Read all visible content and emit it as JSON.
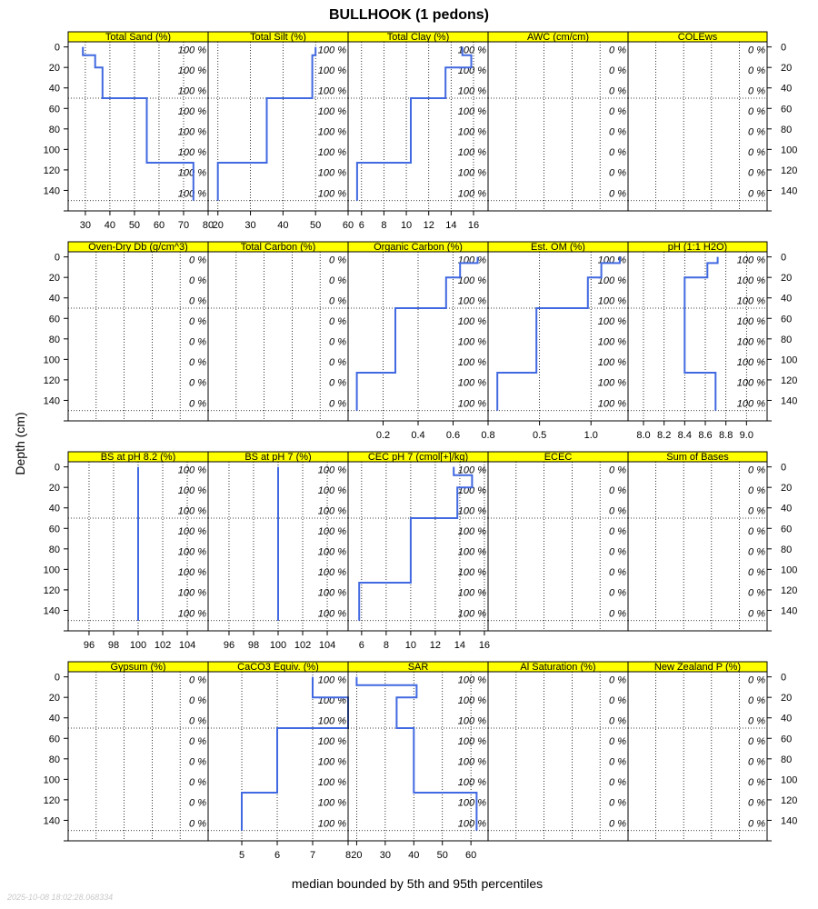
{
  "title": "BULLHOOK (1 pedons)",
  "ylabel": "Depth (cm)",
  "xlabel": "median bounded by 5th and 95th percentiles",
  "timestamp": "2025-10-08 18:02:28.068334",
  "colors": {
    "strip": "#ffff00",
    "line": "#4169e1",
    "grid": "#000000"
  },
  "chart_data": {
    "type": "line",
    "y_axis": {
      "label": "Depth (cm)",
      "ylim": [
        -5,
        160
      ],
      "ticks": [
        0,
        20,
        40,
        60,
        80,
        100,
        120,
        140
      ],
      "reversed": true
    },
    "percent_labels_at_depth": [
      2.5,
      22.5,
      42.5,
      62.5,
      82.5,
      102.5,
      122.5,
      142.5
    ],
    "reference_depths": [
      50,
      150
    ],
    "panels": [
      {
        "name": "Total Sand (%)",
        "xlim": [
          23,
          80
        ],
        "xticks": [
          30,
          40,
          50,
          60,
          70,
          80
        ],
        "pct": "100 %",
        "profile": [
          [
            29,
            0
          ],
          [
            29,
            8
          ],
          [
            34,
            8
          ],
          [
            34,
            20
          ],
          [
            37,
            20
          ],
          [
            37,
            50
          ],
          [
            55,
            50
          ],
          [
            55,
            113
          ],
          [
            74,
            113
          ],
          [
            74,
            150
          ]
        ]
      },
      {
        "name": "Total Silt (%)",
        "xlim": [
          17,
          60
        ],
        "xticks": [
          20,
          30,
          40,
          50,
          60
        ],
        "pct": "100 %",
        "profile": [
          [
            50,
            0
          ],
          [
            50,
            8
          ],
          [
            49,
            8
          ],
          [
            49,
            20
          ],
          [
            49,
            50
          ],
          [
            35,
            50
          ],
          [
            35,
            113
          ],
          [
            20,
            113
          ],
          [
            20,
            150
          ]
        ]
      },
      {
        "name": "Total Clay (%)",
        "xlim": [
          4.8,
          17.3
        ],
        "xticks": [
          6,
          8,
          10,
          12,
          14,
          16
        ],
        "pct": "100 %",
        "profile": [
          [
            15,
            0
          ],
          [
            15,
            8
          ],
          [
            15.8,
            8
          ],
          [
            15.8,
            20
          ],
          [
            13.5,
            20
          ],
          [
            13.5,
            50
          ],
          [
            10.4,
            50
          ],
          [
            10.4,
            113
          ],
          [
            5.6,
            113
          ],
          [
            5.6,
            150
          ]
        ]
      },
      {
        "name": "AWC (cm/cm)",
        "xlim": [
          0,
          1
        ],
        "xticks": [],
        "pct": "0 %",
        "profile": []
      },
      {
        "name": "COLEws",
        "xlim": [
          0,
          1
        ],
        "xticks": [],
        "pct": "0 %",
        "profile": []
      },
      {
        "name": "Oven-Dry Db (g/cm^3)",
        "xlim": [
          0,
          1
        ],
        "xticks": [],
        "pct": "0 %",
        "profile": []
      },
      {
        "name": "Total Carbon (%)",
        "xlim": [
          0,
          1
        ],
        "xticks": [],
        "pct": "0 %",
        "profile": []
      },
      {
        "name": "Organic Carbon (%)",
        "xlim": [
          0,
          0.8
        ],
        "xticks": [
          0.2,
          0.4,
          0.6,
          0.8
        ],
        "xticklabels": [
          "0.2",
          "0.4",
          "0.6",
          "0.8"
        ],
        "pct": "100 %",
        "profile": [
          [
            0.74,
            0
          ],
          [
            0.74,
            6
          ],
          [
            0.64,
            6
          ],
          [
            0.64,
            20
          ],
          [
            0.56,
            20
          ],
          [
            0.56,
            50
          ],
          [
            0.27,
            50
          ],
          [
            0.27,
            113
          ],
          [
            0.05,
            113
          ],
          [
            0.05,
            150
          ]
        ]
      },
      {
        "name": "Est. OM (%)",
        "xlim": [
          0,
          1.36
        ],
        "xticks": [
          0.5,
          1.0
        ],
        "xticklabels": [
          "0.5",
          "1.0"
        ],
        "pct": "100 %",
        "profile": [
          [
            1.28,
            0
          ],
          [
            1.28,
            6
          ],
          [
            1.1,
            6
          ],
          [
            1.1,
            20
          ],
          [
            0.97,
            20
          ],
          [
            0.97,
            50
          ],
          [
            0.47,
            50
          ],
          [
            0.47,
            113
          ],
          [
            0.09,
            113
          ],
          [
            0.09,
            150
          ]
        ]
      },
      {
        "name": "pH (1:1 H2O)",
        "xlim": [
          7.85,
          9.2
        ],
        "xticks": [
          8.0,
          8.2,
          8.4,
          8.6,
          8.8,
          9.0
        ],
        "xticklabels": [
          "8.0",
          "8.2",
          "8.4",
          "8.6",
          "8.8",
          "9.0"
        ],
        "pct": "100 %",
        "profile": [
          [
            8.72,
            0
          ],
          [
            8.72,
            6
          ],
          [
            8.62,
            6
          ],
          [
            8.62,
            20
          ],
          [
            8.4,
            20
          ],
          [
            8.4,
            113
          ],
          [
            8.7,
            113
          ],
          [
            8.7,
            150
          ]
        ]
      },
      {
        "name": "BS at pH 8.2 (%)",
        "xlim": [
          94.3,
          105.7
        ],
        "xticks": [
          96,
          98,
          100,
          102,
          104
        ],
        "pct": "100 %",
        "profile": [
          [
            100,
            0
          ],
          [
            100,
            150
          ]
        ]
      },
      {
        "name": "BS at pH 7 (%)",
        "xlim": [
          94.3,
          105.7
        ],
        "xticks": [
          96,
          98,
          100,
          102,
          104
        ],
        "pct": "100 %",
        "profile": [
          [
            100,
            0
          ],
          [
            100,
            150
          ]
        ]
      },
      {
        "name": "CEC pH 7 (cmol[+]/kg)",
        "xlim": [
          4.9,
          16.3
        ],
        "xticks": [
          6,
          8,
          10,
          12,
          14,
          16
        ],
        "pct": "100 %",
        "profile": [
          [
            13.5,
            0
          ],
          [
            13.5,
            8
          ],
          [
            15,
            8
          ],
          [
            15,
            20
          ],
          [
            13.8,
            20
          ],
          [
            13.8,
            50
          ],
          [
            10,
            50
          ],
          [
            10,
            113
          ],
          [
            5.8,
            113
          ],
          [
            5.8,
            150
          ]
        ]
      },
      {
        "name": "ECEC",
        "xlim": [
          0,
          1
        ],
        "xticks": [],
        "pct": "0 %",
        "profile": []
      },
      {
        "name": "Sum of Bases",
        "xlim": [
          0,
          1
        ],
        "xticks": [],
        "pct": "0 %",
        "profile": []
      },
      {
        "name": "Gypsum (%)",
        "xlim": [
          0,
          1
        ],
        "xticks": [],
        "pct": "0 %",
        "profile": []
      },
      {
        "name": "CaCO3 Equiv. (%)",
        "xlim": [
          4.05,
          8
        ],
        "xticks": [
          5,
          6,
          7,
          8
        ],
        "pct": "100 %",
        "profile": [
          [
            7,
            0
          ],
          [
            7,
            20
          ],
          [
            8,
            20
          ],
          [
            8,
            50
          ],
          [
            6,
            50
          ],
          [
            6,
            113
          ],
          [
            5,
            113
          ],
          [
            5,
            150
          ]
        ]
      },
      {
        "name": "SAR",
        "xlim": [
          17,
          66
        ],
        "xticks": [
          20,
          30,
          40,
          50,
          60
        ],
        "pct": "100 %",
        "profile": [
          [
            20,
            0
          ],
          [
            20,
            8
          ],
          [
            41,
            8
          ],
          [
            41,
            20
          ],
          [
            34,
            20
          ],
          [
            34,
            50
          ],
          [
            40,
            50
          ],
          [
            40,
            113
          ],
          [
            62,
            113
          ],
          [
            62,
            150
          ]
        ]
      },
      {
        "name": "Al Saturation (%)",
        "xlim": [
          0,
          1
        ],
        "xticks": [],
        "pct": "0 %",
        "profile": []
      },
      {
        "name": "New Zealand P (%)",
        "xlim": [
          0,
          1
        ],
        "xticks": [],
        "pct": "0 %",
        "profile": []
      }
    ]
  }
}
